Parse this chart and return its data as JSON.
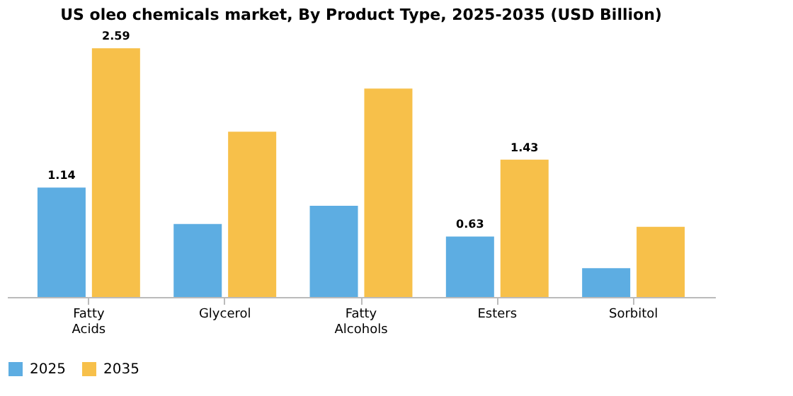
{
  "chart_data": {
    "type": "bar",
    "title": "US oleo chemicals market, By Product Type, 2025-2035 (USD Billion)",
    "categories": [
      "Fatty Acids",
      "Glycerol",
      "Fatty Alcohols",
      "Esters",
      "Sorbitol"
    ],
    "series": [
      {
        "name": "2025",
        "color": "#5dade2",
        "values": [
          1.14,
          0.76,
          0.95,
          0.63,
          0.3
        ],
        "value_labels": [
          "1.14",
          null,
          null,
          "0.63",
          null
        ]
      },
      {
        "name": "2035",
        "color": "#f7c04a",
        "values": [
          2.59,
          1.72,
          2.17,
          1.43,
          0.73
        ],
        "value_labels": [
          "2.59",
          null,
          null,
          "1.43",
          null
        ]
      }
    ],
    "legend": "bottom",
    "grid": false
  }
}
